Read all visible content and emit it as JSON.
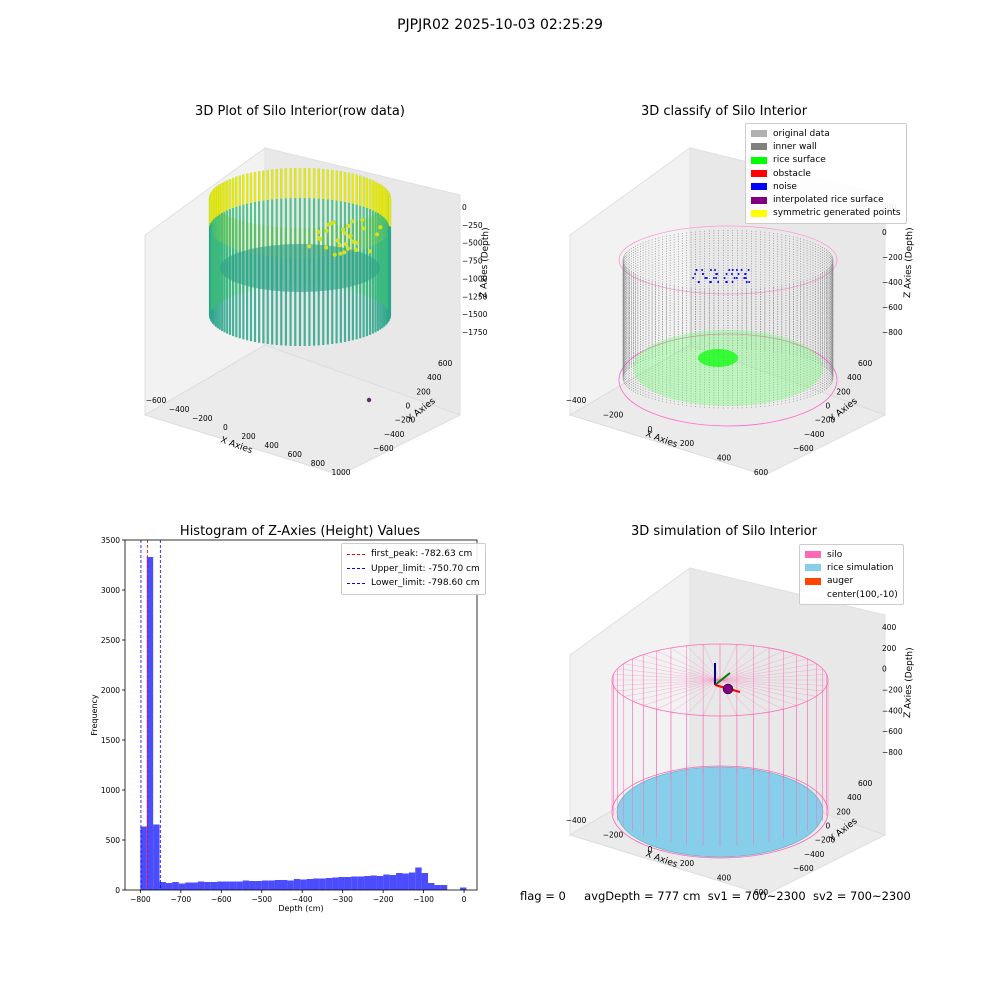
{
  "suptitle": "PJPJR02 2025-10-03 02:25:29",
  "panels": {
    "raw": {
      "title": "3D Plot of Silo Interior(row data)",
      "xlabel": "X Axies",
      "ylabel": "Y Axies",
      "zlabel": "Z Axies (Depth)",
      "xticks": [
        "−600",
        "−400",
        "−200",
        "0",
        "200",
        "400",
        "600",
        "800",
        "1000"
      ],
      "yticks": [
        "600",
        "400",
        "200",
        "0",
        "−200",
        "−400",
        "−600"
      ],
      "zticks": [
        "0",
        "−250",
        "−500",
        "−750",
        "−1000",
        "−1250",
        "−1500",
        "−1750"
      ]
    },
    "classify": {
      "title": "3D classify of Silo Interior",
      "xlabel": "X Axies",
      "ylabel": "Y Axies",
      "zlabel": "Z Axies (Depth)",
      "xticks": [
        "−400",
        "−200",
        "0",
        "200",
        "400",
        "600"
      ],
      "yticks": [
        "600",
        "400",
        "200",
        "0",
        "−200",
        "−400",
        "−600"
      ],
      "zticks": [
        "200",
        "0",
        "−200",
        "−400",
        "−600",
        "−800"
      ],
      "legend": [
        {
          "label": "original data",
          "color": "#b0b0b0"
        },
        {
          "label": "inner wall",
          "color": "#808080"
        },
        {
          "label": "rice surface",
          "color": "#00ff00"
        },
        {
          "label": "obstacle",
          "color": "#ff0000"
        },
        {
          "label": "noise",
          "color": "#0000ff"
        },
        {
          "label": "interpolated rice surface",
          "color": "#800080"
        },
        {
          "label": "symmetric generated points",
          "color": "#ffff00"
        }
      ]
    },
    "simulation": {
      "title": "3D simulation of Silo Interior",
      "xlabel": "X Axies",
      "ylabel": "Y Axies",
      "zlabel": "Z Axies (Depth)",
      "xticks": [
        "−400",
        "−200",
        "0",
        "200",
        "400",
        "600"
      ],
      "yticks": [
        "600",
        "400",
        "200",
        "0",
        "−200",
        "−400",
        "−600"
      ],
      "zticks": [
        "400",
        "200",
        "0",
        "−200",
        "−400",
        "−600",
        "−800"
      ],
      "legend": [
        {
          "label": "silo",
          "color": "#ff69b4"
        },
        {
          "label": "rice simulation",
          "color": "#87ceeb"
        },
        {
          "label": "auger",
          "color": "#ff4500"
        },
        {
          "label": "center(100,-10)",
          "color": ""
        }
      ]
    }
  },
  "footer": {
    "flag": "flag = 0",
    "avg_depth": "avgDepth = 777 cm",
    "sv1": "sv1 = 700~2300",
    "sv2": "sv2 = 700~2300"
  },
  "chart_data": {
    "type": "bar",
    "title": "Histogram of Z-Axies (Height) Values",
    "xlabel": "Depth (cm)",
    "ylabel": "Frequency",
    "xlim": [
      -838,
      32
    ],
    "ylim": [
      0,
      3500
    ],
    "xticks": [
      -800,
      -700,
      -600,
      -500,
      -400,
      -300,
      -200,
      -100,
      0
    ],
    "yticks": [
      0,
      500,
      1000,
      1500,
      2000,
      2500,
      3000,
      3500
    ],
    "bar_color": "#0000ff",
    "bin_width": 15.8,
    "bins": [
      {
        "x0": -800,
        "count": 635
      },
      {
        "x0": -784.2,
        "count": 3330
      },
      {
        "x0": -768.4,
        "count": 655
      },
      {
        "x0": -752.6,
        "count": 80
      },
      {
        "x0": -736.8,
        "count": 70
      },
      {
        "x0": -721,
        "count": 80
      },
      {
        "x0": -705.2,
        "count": 65
      },
      {
        "x0": -689.4,
        "count": 75
      },
      {
        "x0": -673.6,
        "count": 75
      },
      {
        "x0": -657.8,
        "count": 85
      },
      {
        "x0": -642,
        "count": 80
      },
      {
        "x0": -626.2,
        "count": 80
      },
      {
        "x0": -610.4,
        "count": 85
      },
      {
        "x0": -594.6,
        "count": 85
      },
      {
        "x0": -578.8,
        "count": 85
      },
      {
        "x0": -563,
        "count": 85
      },
      {
        "x0": -547.2,
        "count": 95
      },
      {
        "x0": -531.4,
        "count": 90
      },
      {
        "x0": -515.6,
        "count": 90
      },
      {
        "x0": -499.8,
        "count": 95
      },
      {
        "x0": -484,
        "count": 95
      },
      {
        "x0": -468.2,
        "count": 100
      },
      {
        "x0": -452.4,
        "count": 100
      },
      {
        "x0": -436.6,
        "count": 95
      },
      {
        "x0": -420.8,
        "count": 110
      },
      {
        "x0": -405,
        "count": 105
      },
      {
        "x0": -389.2,
        "count": 110
      },
      {
        "x0": -373.4,
        "count": 115
      },
      {
        "x0": -357.6,
        "count": 115
      },
      {
        "x0": -341.8,
        "count": 120
      },
      {
        "x0": -326,
        "count": 125
      },
      {
        "x0": -310.2,
        "count": 130
      },
      {
        "x0": -294.4,
        "count": 130
      },
      {
        "x0": -278.6,
        "count": 135
      },
      {
        "x0": -262.8,
        "count": 135
      },
      {
        "x0": -247,
        "count": 140
      },
      {
        "x0": -231.2,
        "count": 145
      },
      {
        "x0": -215.4,
        "count": 140
      },
      {
        "x0": -199.6,
        "count": 155
      },
      {
        "x0": -183.8,
        "count": 150
      },
      {
        "x0": -168,
        "count": 170
      },
      {
        "x0": -152.2,
        "count": 165
      },
      {
        "x0": -136.4,
        "count": 175
      },
      {
        "x0": -120.6,
        "count": 225
      },
      {
        "x0": -104.8,
        "count": 170
      },
      {
        "x0": -89,
        "count": 70
      },
      {
        "x0": -73.2,
        "count": 50
      },
      {
        "x0": -57.4,
        "count": 50
      },
      {
        "x0": -41.6,
        "count": 0
      },
      {
        "x0": -25.8,
        "count": 0
      },
      {
        "x0": -10,
        "count": 25
      }
    ],
    "vlines": [
      {
        "label": "first_peak: -782.63 cm",
        "x": -782.63,
        "color": "#ff0000"
      },
      {
        "label": "Upper_limit: -750.70 cm",
        "x": -750.7,
        "color": "#0000ff"
      },
      {
        "label": "Lower_limit: -798.60 cm",
        "x": -798.6,
        "color": "#0000ff"
      }
    ],
    "legend_position": "upper right"
  }
}
